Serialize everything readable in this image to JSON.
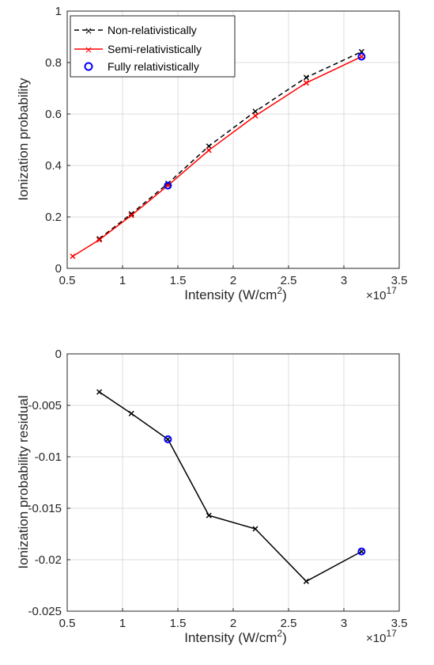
{
  "chart_data": [
    {
      "type": "line",
      "xlabel": "Intensity (W/cm",
      "xlabel_sup": "2",
      "xlabel_close": ")",
      "ylabel": "Ionization probability",
      "x_multiplier_base": "×10",
      "x_multiplier_exp": "17",
      "xlim": [
        0.5,
        3.5
      ],
      "ylim": [
        0,
        1
      ],
      "xticks": [
        "0.5",
        "1",
        "1.5",
        "2",
        "2.5",
        "3",
        "3.5"
      ],
      "yticks": [
        "0",
        "0.2",
        "0.4",
        "0.6",
        "0.8",
        "1"
      ],
      "grid": true,
      "legend_position": "top-left",
      "series": [
        {
          "name": "Non-relativistically",
          "style": "dashed",
          "marker": "x",
          "color": "#000000",
          "x": [
            0.79,
            1.08,
            1.41,
            1.78,
            2.2,
            2.66,
            3.16
          ],
          "y": [
            0.115,
            0.212,
            0.33,
            0.475,
            0.61,
            0.742,
            0.842
          ]
        },
        {
          "name": "Semi-relativistically",
          "style": "solid",
          "marker": "x",
          "color": "#ff0000",
          "x": [
            0.55,
            0.79,
            1.08,
            1.41,
            1.78,
            2.2,
            2.66,
            3.16
          ],
          "y": [
            0.047,
            0.111,
            0.206,
            0.322,
            0.459,
            0.593,
            0.721,
            0.823
          ]
        },
        {
          "name": "Fully relativistically",
          "style": "none",
          "marker": "o",
          "color": "#0000ff",
          "x": [
            1.41,
            3.16
          ],
          "y": [
            0.322,
            0.823
          ]
        }
      ]
    },
    {
      "type": "line",
      "xlabel": "Intensity (W/cm",
      "xlabel_sup": "2",
      "xlabel_close": ")",
      "ylabel": "Ionization probability residual",
      "x_multiplier_base": "×10",
      "x_multiplier_exp": "17",
      "xlim": [
        0.5,
        3.5
      ],
      "ylim": [
        -0.025,
        0
      ],
      "xticks": [
        "0.5",
        "1",
        "1.5",
        "2",
        "2.5",
        "3",
        "3.5"
      ],
      "yticks": [
        "-0.025",
        "-0.02",
        "-0.015",
        "-0.01",
        "-0.005",
        "0"
      ],
      "grid": true,
      "series": [
        {
          "style": "solid",
          "marker": "x",
          "color": "#000000",
          "x": [
            0.79,
            1.08,
            1.41,
            1.78,
            2.2,
            2.66,
            3.16
          ],
          "y": [
            -0.0037,
            -0.0058,
            -0.0083,
            -0.0157,
            -0.017,
            -0.0221,
            -0.0192
          ]
        },
        {
          "style": "none",
          "marker": "o",
          "color": "#0000ff",
          "x": [
            1.41,
            3.16
          ],
          "y": [
            -0.0083,
            -0.0192
          ]
        }
      ]
    }
  ]
}
